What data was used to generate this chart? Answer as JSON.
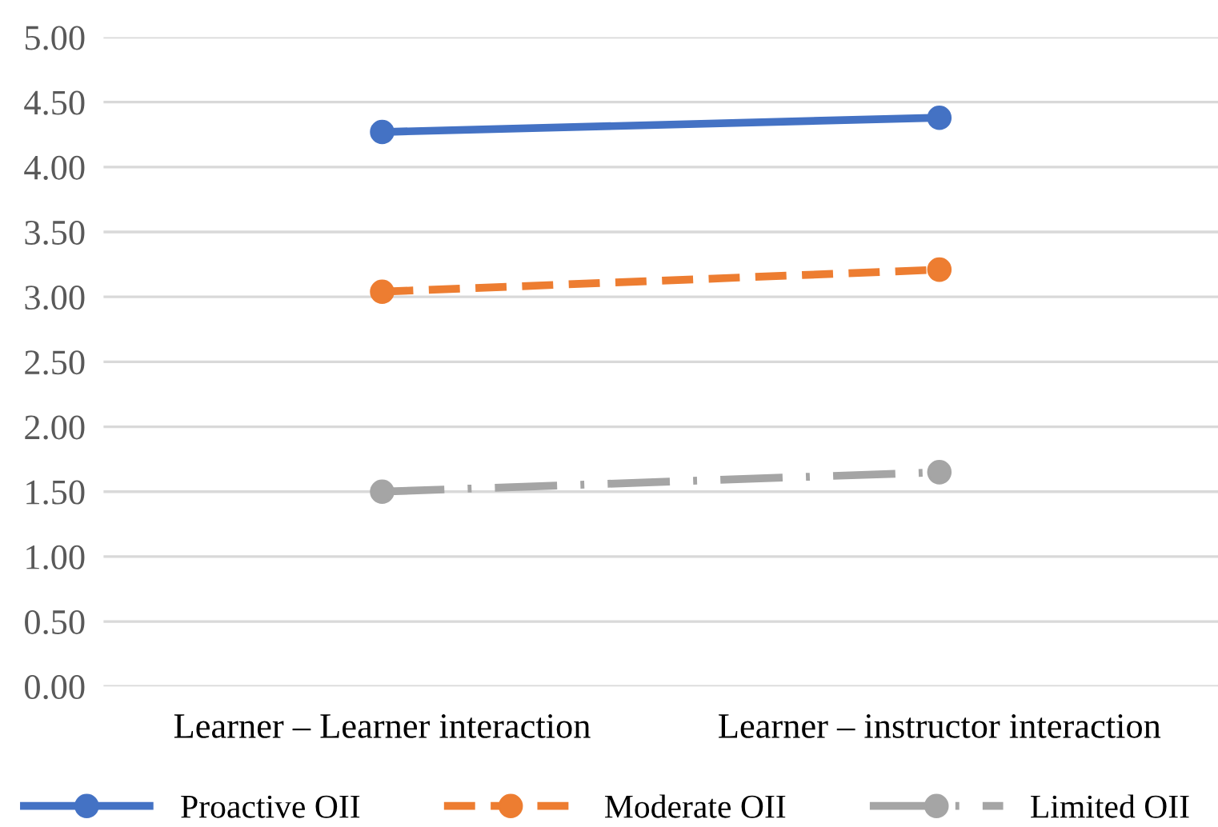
{
  "chart_data": {
    "type": "line",
    "categories": [
      "Learner – Learner interaction",
      "Learner – instructor interaction"
    ],
    "series": [
      {
        "name": "Proactive OII",
        "color": "#4472c4",
        "values": [
          4.27,
          4.38
        ],
        "line_style": "solid"
      },
      {
        "name": "Moderate OII",
        "color": "#ed7d31",
        "values": [
          3.04,
          3.21
        ],
        "line_style": "dashed"
      },
      {
        "name": "Limited OII",
        "color": "#a5a5a5",
        "values": [
          1.5,
          1.65
        ],
        "line_style": "dashdot"
      }
    ],
    "ylim": [
      0,
      5
    ],
    "yticks": [
      {
        "value": 0,
        "label": "0.00"
      },
      {
        "value": 0.5,
        "label": "0.50"
      },
      {
        "value": 1,
        "label": "1.00"
      },
      {
        "value": 1.5,
        "label": "1.50"
      },
      {
        "value": 2,
        "label": "2.00"
      },
      {
        "value": 2.5,
        "label": "2.50"
      },
      {
        "value": 3,
        "label": "3.00"
      },
      {
        "value": 3.5,
        "label": "3.50"
      },
      {
        "value": 4,
        "label": "4.00"
      },
      {
        "value": 4.5,
        "label": "4.50"
      },
      {
        "value": 5,
        "label": "5.00"
      }
    ],
    "grid": "y",
    "legend": "bottom",
    "marker": "circle"
  }
}
